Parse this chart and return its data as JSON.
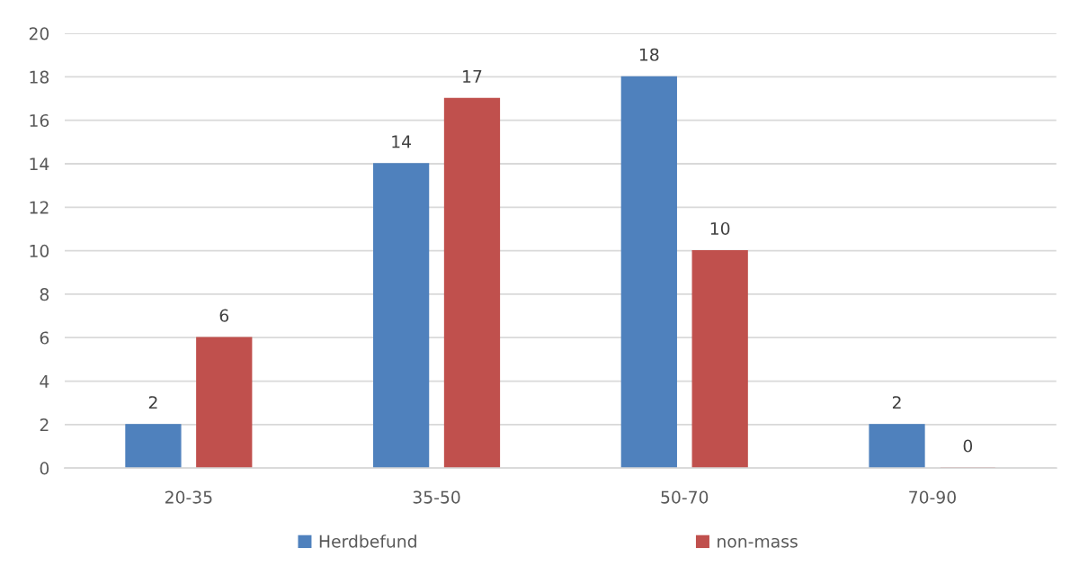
{
  "chart_data": {
    "type": "bar",
    "categories": [
      "20-35",
      "35-50",
      "50-70",
      "70-90"
    ],
    "series": [
      {
        "name": "Herdbefund",
        "color": "#4f81bd",
        "values": [
          2,
          14,
          18,
          2
        ]
      },
      {
        "name": "non-mass",
        "color": "#c0504d",
        "values": [
          6,
          17,
          10,
          0
        ]
      }
    ],
    "ylim": [
      0,
      20
    ],
    "yticks": [
      0,
      2,
      4,
      6,
      8,
      10,
      12,
      14,
      16,
      18,
      20
    ],
    "grid": "y",
    "legend": "bottom",
    "data_labels": true
  }
}
